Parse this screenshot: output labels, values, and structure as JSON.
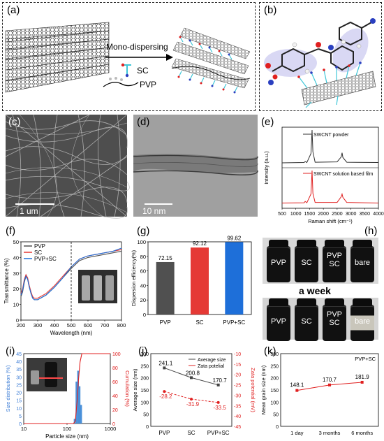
{
  "panels": {
    "a": "(a)",
    "b": "(b)",
    "c": "(c)",
    "d": "(d)",
    "e": "(e)",
    "f": "(f)",
    "g": "(g)",
    "h": "(h)",
    "i": "(i)",
    "j": "(j)",
    "k": "(k)"
  },
  "schematic_a": {
    "arrow_label": "Mono-dispersing",
    "sc_label": "SC",
    "pvp_label": "PVP"
  },
  "micrographs": {
    "sem_scale": "1 um",
    "tem_scale": "10 nm"
  },
  "colors": {
    "pvp": "#505050",
    "sc": "#e53935",
    "pvp_sc": "#1e6fd9",
    "cyan": "#3fc6d8",
    "red": "#e02020",
    "blue_hist": "#4a90d9"
  },
  "vials_h": {
    "top": [
      "PVP",
      "SC",
      "PVP SC",
      "bare"
    ],
    "middle_label": "a week",
    "bottom": [
      "PVP",
      "SC",
      "PVP SC",
      "bare"
    ]
  },
  "chart_data": [
    {
      "id": "e",
      "type": "line",
      "xlabel": "Raman shift (cm⁻¹)",
      "ylabel": "Intensity (a.u.)",
      "xlim": [
        500,
        4000
      ],
      "xticks": [
        "500",
        "1000",
        "1500",
        "2000",
        "2500",
        "3000",
        "3500",
        "4000"
      ],
      "series": [
        {
          "name": "SWCNT powder",
          "color": "#303030",
          "x": [
            500,
            1300,
            1340,
            1400,
            1550,
            1590,
            1620,
            1700,
            2500,
            2650,
            2680,
            2710,
            2850,
            4000
          ],
          "y": [
            0.02,
            0.03,
            0.06,
            0.03,
            0.3,
            1.0,
            0.35,
            0.04,
            0.05,
            0.2,
            0.32,
            0.18,
            0.04,
            0.03
          ]
        },
        {
          "name": "SWCNT solution based film",
          "color": "#e02020",
          "x": [
            500,
            1300,
            1340,
            1400,
            1550,
            1590,
            1620,
            1700,
            2500,
            2650,
            2680,
            2710,
            2850,
            4000
          ],
          "y": [
            0.03,
            0.04,
            0.08,
            0.04,
            0.3,
            1.0,
            0.32,
            0.05,
            0.05,
            0.22,
            0.3,
            0.2,
            0.05,
            0.03
          ]
        }
      ]
    },
    {
      "id": "f",
      "type": "line",
      "xlabel": "Wavelength (nm)",
      "ylabel": "Transmittance (%)",
      "xlim": [
        200,
        800
      ],
      "ylim": [
        0,
        50
      ],
      "xticks": [
        "200",
        "300",
        "400",
        "500",
        "600",
        "700",
        "800"
      ],
      "yticks": [
        "0",
        "10",
        "20",
        "30",
        "40",
        "50"
      ],
      "series": [
        {
          "name": "PVP",
          "color": "#505050",
          "x": [
            200,
            210,
            220,
            230,
            240,
            250,
            260,
            270,
            280,
            300,
            350,
            400,
            450,
            500,
            550,
            600,
            650,
            700,
            750,
            800
          ],
          "y": [
            15,
            18,
            24,
            28,
            26,
            21,
            17,
            14,
            13,
            13,
            16,
            21,
            27,
            33,
            38,
            40,
            41,
            42,
            43,
            44
          ]
        },
        {
          "name": "SC",
          "color": "#e53935",
          "x": [
            200,
            210,
            220,
            230,
            240,
            250,
            260,
            270,
            280,
            300,
            350,
            400,
            450,
            500,
            550,
            600,
            650,
            700,
            750,
            800
          ],
          "y": [
            17,
            20,
            26,
            29,
            27,
            22,
            18,
            15,
            14,
            14,
            17,
            22,
            28,
            34,
            39,
            41,
            42,
            43,
            44,
            45
          ]
        },
        {
          "name": "PVP+SC",
          "color": "#1e6fd9",
          "x": [
            200,
            210,
            220,
            230,
            240,
            250,
            260,
            270,
            280,
            300,
            350,
            400,
            450,
            500,
            550,
            600,
            650,
            700,
            750,
            800
          ],
          "y": [
            16,
            19,
            25,
            28,
            26,
            21,
            17,
            14,
            13,
            13,
            16,
            21,
            27,
            34,
            39,
            41,
            42,
            43,
            44,
            46
          ]
        }
      ]
    },
    {
      "id": "g",
      "type": "bar",
      "ylabel": "Dispersion efficiency(%)",
      "ylim": [
        0,
        100
      ],
      "yticks": [
        "0",
        "20",
        "40",
        "60",
        "80",
        "100"
      ],
      "categories": [
        "PVP",
        "SC",
        "PVP+SC"
      ],
      "values": [
        72.15,
        92.12,
        99.62
      ],
      "value_labels": [
        "72.15",
        "92.12",
        "99.62"
      ],
      "colors": [
        "#505050",
        "#e53935",
        "#1e6fd9"
      ]
    },
    {
      "id": "i",
      "type": "bar",
      "xlabel": "Particle size (nm)",
      "ylabel": "Size distribution (%)",
      "y2label": "Cumulation (%)",
      "xscale": "log",
      "xlim": [
        10,
        1000
      ],
      "xticks": [
        "10",
        "100",
        "1000"
      ],
      "ylim": [
        0,
        45
      ],
      "yticks": [
        "0",
        "5",
        "10",
        "15",
        "20",
        "25",
        "30",
        "35",
        "40",
        "45"
      ],
      "y2lim": [
        0,
        100
      ],
      "y2ticks": [
        "0",
        "20",
        "40",
        "60",
        "80",
        "100"
      ],
      "bins": [
        {
          "x": 150,
          "value": 3
        },
        {
          "x": 165,
          "value": 27
        },
        {
          "x": 180,
          "value": 34
        },
        {
          "x": 195,
          "value": 24
        },
        {
          "x": 212,
          "value": 12
        }
      ],
      "cumulative": {
        "x": [
          10,
          140,
          155,
          170,
          185,
          200,
          220,
          260,
          1000
        ],
        "y": [
          0,
          0,
          3,
          30,
          64,
          88,
          100,
          100,
          100
        ]
      }
    },
    {
      "id": "j",
      "type": "line",
      "ylabel": "Average size (nm)",
      "y2label": "Zata potential (mV)",
      "categories": [
        "PVP",
        "SC",
        "PVP+SC"
      ],
      "ylim": [
        0,
        300
      ],
      "yticks": [
        "0",
        "50",
        "100",
        "150",
        "200",
        "250",
        "300"
      ],
      "y2lim": [
        -45,
        -10
      ],
      "y2ticks": [
        "-10",
        "-15",
        "-20",
        "-25",
        "-30",
        "-35",
        "-40",
        "-45"
      ],
      "series": [
        {
          "name": "Average size",
          "color": "#444444",
          "axis": "left",
          "values": [
            241.1,
            200.8,
            170.7
          ],
          "labels": [
            "241.1",
            "200.8",
            "170.7"
          ]
        },
        {
          "name": "Zata potelial",
          "color": "#e02020",
          "axis": "right",
          "values": [
            -28.2,
            -31.9,
            -33.5
          ],
          "labels": [
            "-28.2",
            "-31.9",
            "-33.5"
          ]
        }
      ]
    },
    {
      "id": "k",
      "type": "line",
      "ylabel": "Mean grain size (nm)",
      "annotation": "PVP+SC",
      "categories": [
        "1 day",
        "3 months",
        "6 months"
      ],
      "ylim": [
        0,
        300
      ],
      "yticks": [
        "0",
        "50",
        "100",
        "150",
        "200",
        "250",
        "300"
      ],
      "series": [
        {
          "name": "PVP+SC",
          "color": "#e02020",
          "values": [
            148.1,
            170.7,
            181.9
          ],
          "labels": [
            "148.1",
            "170.7",
            "181.9"
          ]
        }
      ]
    }
  ]
}
